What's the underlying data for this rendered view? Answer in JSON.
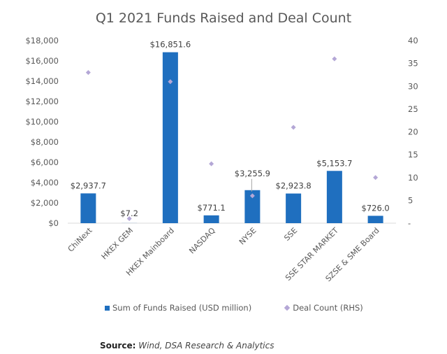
{
  "chart_data": {
    "type": "bar",
    "title": "Q1 2021 Funds Raised and Deal Count",
    "categories": [
      "ChiNext",
      "HKEX GEM",
      "HKEX Mainboard",
      "NASDAQ",
      "NYSE",
      "SSE",
      "SSE STAR MARKET",
      "SZSE & SME Board"
    ],
    "series": [
      {
        "name": "Sum of Funds Raised (USD million)",
        "type": "bar",
        "axis": "left",
        "color": "#1f6fbf",
        "values": [
          2937.7,
          7.2,
          16851.6,
          771.1,
          3255.9,
          2923.8,
          5153.7,
          726.0
        ],
        "labels": [
          "$2,937.7",
          "$7.2",
          "$16,851.6",
          "$771.1",
          "$3,255.9",
          "$2,923.8",
          "$5,153.7",
          "$726.0"
        ]
      },
      {
        "name": "Deal Count (RHS)",
        "type": "scatter",
        "marker": "diamond",
        "axis": "right",
        "color": "#b4a7d6",
        "values": [
          33,
          1,
          31,
          13,
          6,
          21,
          36,
          10
        ]
      }
    ],
    "xlabel": "",
    "ylabel": "",
    "ylim": [
      0,
      18000
    ],
    "y2lim": [
      0,
      40
    ],
    "yticks": [
      "$0",
      "$2,000",
      "$4,000",
      "$6,000",
      "$8,000",
      "$10,000",
      "$12,000",
      "$14,000",
      "$16,000",
      "$18,000"
    ],
    "y2ticks": [
      "-",
      "5",
      "10",
      "15",
      "20",
      "25",
      "30",
      "35",
      "40"
    ],
    "grid": false,
    "legend": "bottom"
  },
  "legend": {
    "bar_label": "Sum of Funds Raised (USD million)",
    "marker_label": "Deal Count (RHS)",
    "bar_color": "#1f6fbf",
    "marker_color": "#b4a7d6"
  },
  "source": {
    "label": "Source:",
    "text": "Wind, DSA Research & Analytics"
  }
}
